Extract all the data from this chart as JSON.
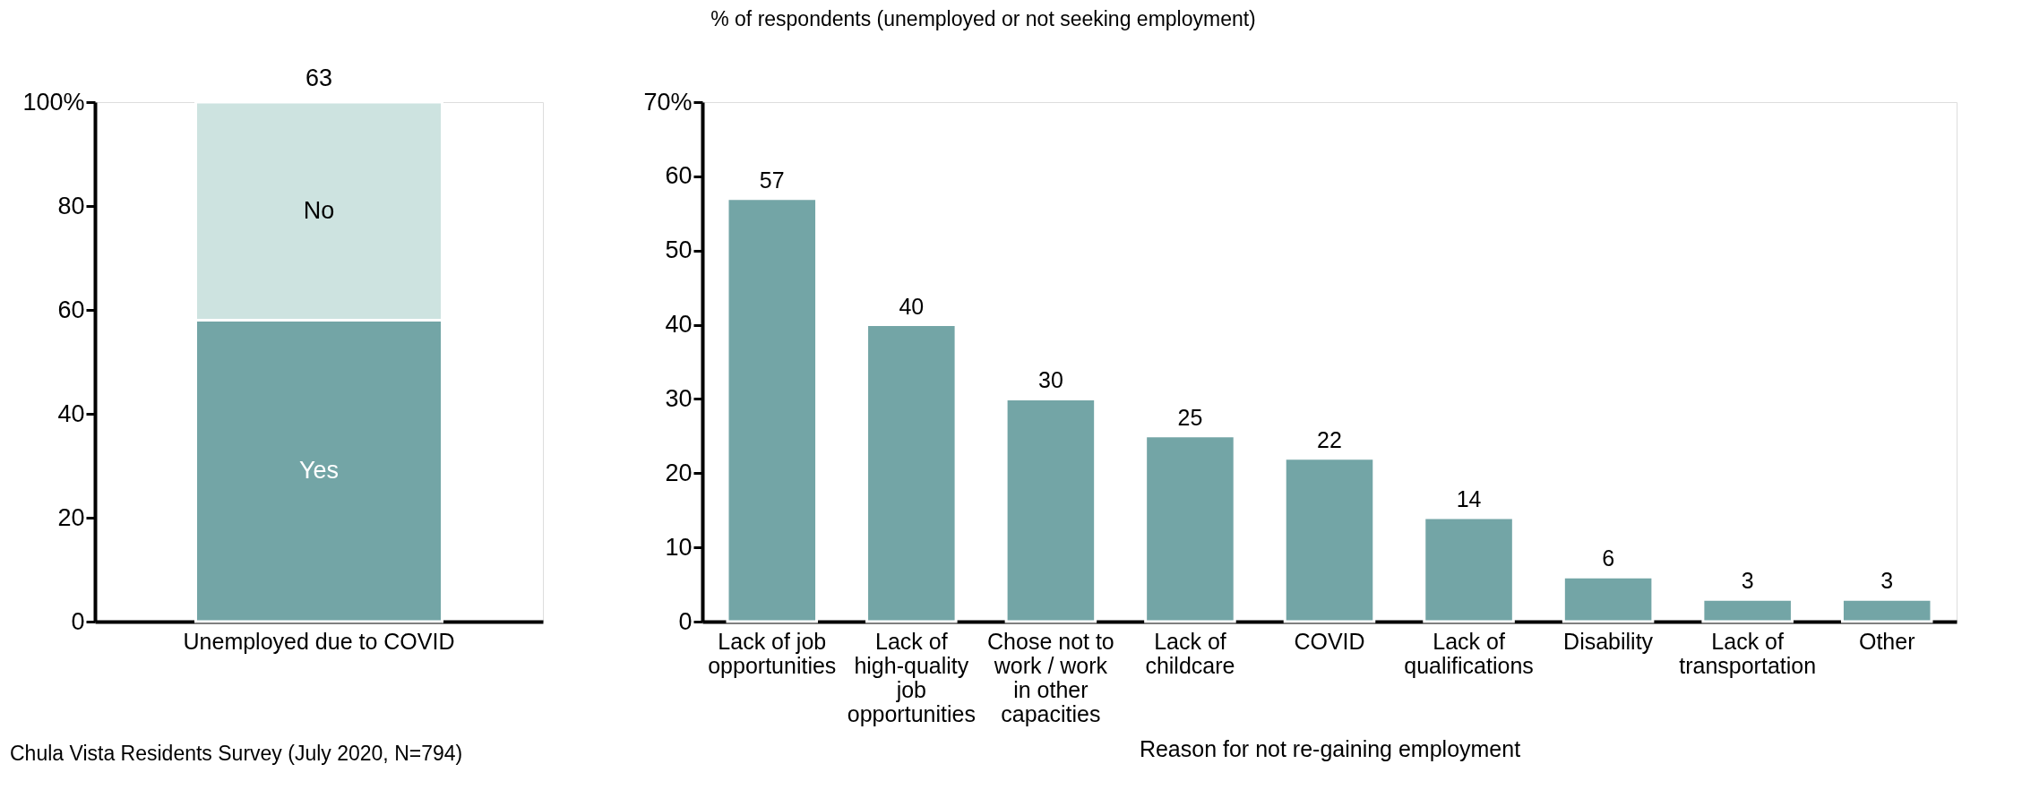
{
  "chart_data": [
    {
      "type": "bar",
      "stacked": true,
      "categories": [
        "Unemployed due to COVID"
      ],
      "series": [
        {
          "name": "Yes",
          "color": "#73a5a6",
          "values": [
            58
          ]
        },
        {
          "name": "No",
          "color": "#cde3e0",
          "values": [
            42
          ]
        }
      ],
      "ylim": [
        0,
        100
      ],
      "yticks": [
        0,
        20,
        40,
        60,
        80,
        {
          "value": 100,
          "label": "100%"
        }
      ],
      "grid": false,
      "legend": false,
      "annotations": [
        {
          "text": "63",
          "x": "Unemployed due to COVID",
          "y": 100
        },
        "Chula Vista Residents Survey (July 2020, N=794)"
      ]
    },
    {
      "type": "bar",
      "title": "% of respondents (unemployed or not seeking employment)",
      "xlabel": "Reason for not re-gaining employment",
      "categories": [
        "Lack of job opportunities",
        "Lack of high-quality job opportunities",
        "Chose not to work / work in other capacities",
        "Lack of childcare",
        "COVID",
        "Lack of qualifications",
        "Disability",
        "Lack of transportation",
        "Other"
      ],
      "values": [
        57,
        40,
        30,
        25,
        22,
        14,
        6,
        3,
        3
      ],
      "color": "#73a5a6",
      "ylim": [
        0,
        70
      ],
      "yticks": [
        0,
        10,
        20,
        30,
        40,
        50,
        60,
        {
          "value": 70,
          "label": "70%"
        }
      ],
      "grid": false,
      "legend": false,
      "data_labels": true
    }
  ]
}
